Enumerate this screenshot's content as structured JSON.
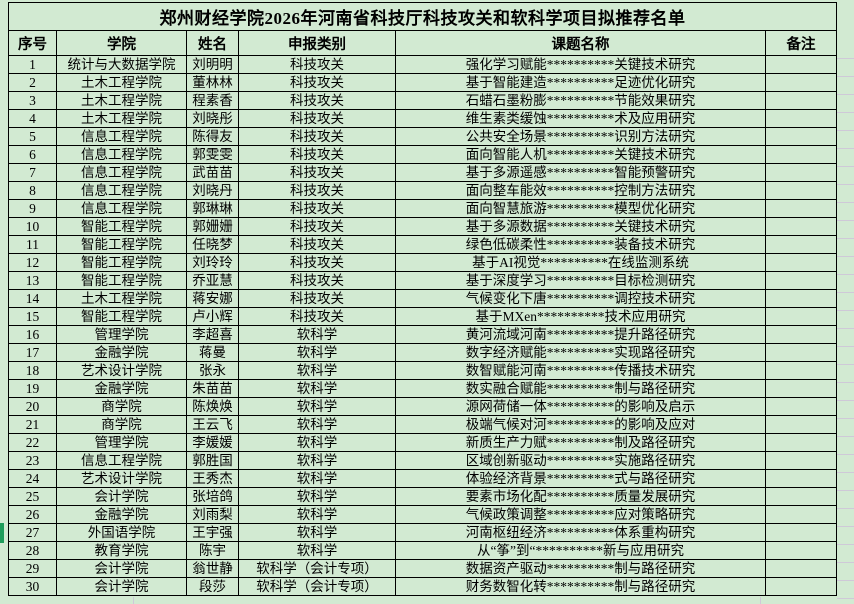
{
  "title": "郑州财经学院2026年河南省科技厅科技攻关和软科学项目拟推荐名单",
  "table": {
    "headers": [
      "序号",
      "学院",
      "姓名",
      "申报类别",
      "课题名称",
      "备注"
    ],
    "rows": [
      {
        "seq": "1",
        "college": "统计与大数据学院",
        "name": "刘明明",
        "category": "科技攻关",
        "project": "强化学习赋能**********关键技术研究",
        "note": ""
      },
      {
        "seq": "2",
        "college": "土木工程学院",
        "name": "董林林",
        "category": "科技攻关",
        "project": "基于智能建造**********足迹优化研究",
        "note": ""
      },
      {
        "seq": "3",
        "college": "土木工程学院",
        "name": "程素香",
        "category": "科技攻关",
        "project": "石蜡石墨粉膨**********节能效果研究",
        "note": ""
      },
      {
        "seq": "4",
        "college": "土木工程学院",
        "name": "刘晓彤",
        "category": "科技攻关",
        "project": "维生素类缓蚀**********术及应用研究",
        "note": ""
      },
      {
        "seq": "5",
        "college": "信息工程学院",
        "name": "陈得友",
        "category": "科技攻关",
        "project": "公共安全场景**********识别方法研究",
        "note": ""
      },
      {
        "seq": "6",
        "college": "信息工程学院",
        "name": "郭雯雯",
        "category": "科技攻关",
        "project": "面向智能人机**********关键技术研究",
        "note": ""
      },
      {
        "seq": "7",
        "college": "信息工程学院",
        "name": "武苗苗",
        "category": "科技攻关",
        "project": "基于多源遥感**********智能预警研究",
        "note": ""
      },
      {
        "seq": "8",
        "college": "信息工程学院",
        "name": "刘晓丹",
        "category": "科技攻关",
        "project": "面向整车能效**********控制方法研究",
        "note": ""
      },
      {
        "seq": "9",
        "college": "信息工程学院",
        "name": "郭琳琳",
        "category": "科技攻关",
        "project": "面向智慧旅游**********模型优化研究",
        "note": ""
      },
      {
        "seq": "10",
        "college": "智能工程学院",
        "name": "郭姗姗",
        "category": "科技攻关",
        "project": "基于多源数据**********关键技术研究",
        "note": ""
      },
      {
        "seq": "11",
        "college": "智能工程学院",
        "name": "任晓梦",
        "category": "科技攻关",
        "project": "绿色低碳柔性**********装备技术研究",
        "note": ""
      },
      {
        "seq": "12",
        "college": "智能工程学院",
        "name": "刘玲玲",
        "category": "科技攻关",
        "project": "基于AI视觉**********在线监测系统",
        "note": ""
      },
      {
        "seq": "13",
        "college": "智能工程学院",
        "name": "乔亚慧",
        "category": "科技攻关",
        "project": "基于深度学习**********目标检测研究",
        "note": ""
      },
      {
        "seq": "14",
        "college": "土木工程学院",
        "name": "蒋安娜",
        "category": "科技攻关",
        "project": "气候变化下唐**********调控技术研究",
        "note": ""
      },
      {
        "seq": "15",
        "college": "智能工程学院",
        "name": "卢小辉",
        "category": "科技攻关",
        "project": "基于MXen**********技术应用研究",
        "note": ""
      },
      {
        "seq": "16",
        "college": "管理学院",
        "name": "李超喜",
        "category": "软科学",
        "project": "黄河流域河南**********提升路径研究",
        "note": ""
      },
      {
        "seq": "17",
        "college": "金融学院",
        "name": "蒋曼",
        "category": "软科学",
        "project": "数字经济赋能**********实现路径研究",
        "note": ""
      },
      {
        "seq": "18",
        "college": "艺术设计学院",
        "name": "张永",
        "category": "软科学",
        "project": "数智赋能河南**********传播技术研究",
        "note": ""
      },
      {
        "seq": "19",
        "college": "金融学院",
        "name": "朱苗苗",
        "category": "软科学",
        "project": "数实融合赋能**********制与路径研究",
        "note": ""
      },
      {
        "seq": "20",
        "college": "商学院",
        "name": "陈焕焕",
        "category": "软科学",
        "project": "源网荷储一体**********的影响及启示",
        "note": ""
      },
      {
        "seq": "21",
        "college": "商学院",
        "name": "王云飞",
        "category": "软科学",
        "project": "极端气候对河**********的影响及应对",
        "note": ""
      },
      {
        "seq": "22",
        "college": "管理学院",
        "name": "李媛媛",
        "category": "软科学",
        "project": "新质生产力赋**********制及路径研究",
        "note": ""
      },
      {
        "seq": "23",
        "college": "信息工程学院",
        "name": "郭胜国",
        "category": "软科学",
        "project": "区域创新驱动**********实施路径研究",
        "note": ""
      },
      {
        "seq": "24",
        "college": "艺术设计学院",
        "name": "王秀杰",
        "category": "软科学",
        "project": "体验经济背景**********式与路径研究",
        "note": ""
      },
      {
        "seq": "25",
        "college": "会计学院",
        "name": "张培鸽",
        "category": "软科学",
        "project": "要素市场化配**********质量发展研究",
        "note": ""
      },
      {
        "seq": "26",
        "college": "金融学院",
        "name": "刘雨梨",
        "category": "软科学",
        "project": "气候政策调整**********应对策略研究",
        "note": ""
      },
      {
        "seq": "27",
        "college": "外国语学院",
        "name": "王宇强",
        "category": "软科学",
        "project": "河南枢纽经济**********体系重构研究",
        "note": ""
      },
      {
        "seq": "28",
        "college": "教育学院",
        "name": "陈宇",
        "category": "软科学",
        "project": "从“筝”到“**********新与应用研究",
        "note": ""
      },
      {
        "seq": "29",
        "college": "会计学院",
        "name": "翁世静",
        "category": "软科学（会计专项）",
        "project": "数据资产驱动**********制与路径研究",
        "note": ""
      },
      {
        "seq": "30",
        "college": "会计学院",
        "name": "段莎",
        "category": "软科学（会计专项）",
        "project": "财务数智化转**********制与路径研究",
        "note": ""
      }
    ]
  },
  "selection": {
    "selected_row_seq": "27"
  },
  "colors": {
    "background": "#d2ead2",
    "table_border": "#000000",
    "text": "#000000",
    "row_selection_marker": "#1f9d5b",
    "faint_gridline": "#cfc9d8"
  }
}
